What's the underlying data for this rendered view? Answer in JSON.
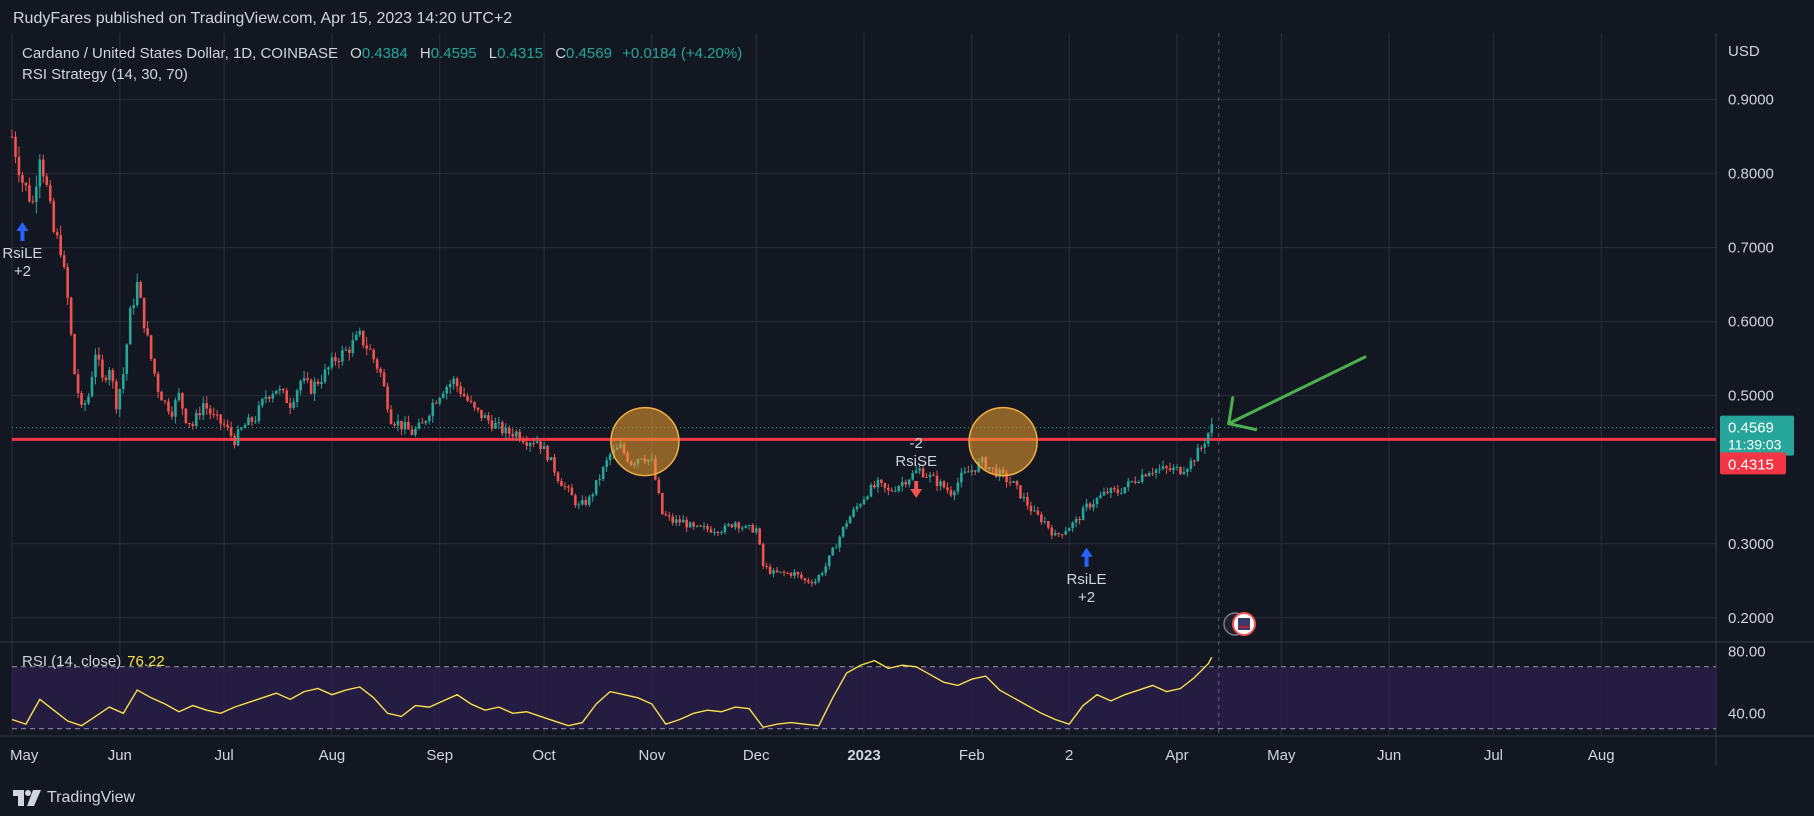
{
  "header": {
    "published": "RudyFares published on TradingView.com, Apr 15, 2023 14:20 UTC+2"
  },
  "legend": {
    "symbol": "Cardano / United States Dollar, 1D, COINBASE",
    "o_label": "O",
    "o_value": "0.4384",
    "h_label": "H",
    "h_value": "0.4595",
    "l_label": "L",
    "l_value": "0.4315",
    "c_label": "C",
    "c_value": "0.4569",
    "change": "+0.0184 (+4.20%)",
    "strategy": "RSI Strategy (14, 30, 70)"
  },
  "rsi_legend": {
    "label": "RSI (14, close)",
    "value": "76.22"
  },
  "footer": {
    "brand": "TradingView"
  },
  "colors": {
    "up": "#26a69a",
    "down": "#ef5350",
    "support": "#f23645",
    "rsi_line": "#f7e04b",
    "rsi_band": "#2a1e4a",
    "arrow": "#4caf50",
    "circle": "#f0a030",
    "signal_up": "#2962ff"
  },
  "chart_data": {
    "type": "candlestick",
    "title": "Cardano / United States Dollar, 1D, COINBASE",
    "currency_label": "USD",
    "y_ticks": [
      "0.9000",
      "0.8000",
      "0.7000",
      "0.6000",
      "0.5000",
      "0.3000",
      "0.2000"
    ],
    "y_tick_values": [
      0.9,
      0.8,
      0.7,
      0.6,
      0.5,
      0.3,
      0.2
    ],
    "ylim": [
      0.17,
      0.99
    ],
    "x_labels": [
      "May",
      "Jun",
      "Jul",
      "Aug",
      "Sep",
      "Oct",
      "Nov",
      "Dec",
      "2023",
      "Feb",
      "2",
      "Apr",
      "May",
      "Jun",
      "Jul",
      "Aug"
    ],
    "x_label_days": [
      0,
      31,
      61,
      92,
      123,
      153,
      184,
      214,
      245,
      276,
      304,
      335,
      365,
      396,
      426,
      457
    ],
    "x_range_days": [
      0,
      490
    ],
    "support_level": 0.441,
    "last_price_label": "0.4569",
    "countdown_label": "11:39:03",
    "low_price_label": "0.4315",
    "last_price": 0.4569,
    "low_price": 0.4315,
    "close_path": [
      [
        0,
        0.85
      ],
      [
        3,
        0.79
      ],
      [
        6,
        0.76
      ],
      [
        8,
        0.83
      ],
      [
        10,
        0.78
      ],
      [
        12,
        0.72
      ],
      [
        14,
        0.7
      ],
      [
        16,
        0.63
      ],
      [
        18,
        0.53
      ],
      [
        20,
        0.48
      ],
      [
        22,
        0.5
      ],
      [
        24,
        0.56
      ],
      [
        26,
        0.52
      ],
      [
        28,
        0.54
      ],
      [
        30,
        0.49
      ],
      [
        32,
        0.53
      ],
      [
        34,
        0.61
      ],
      [
        36,
        0.65
      ],
      [
        38,
        0.6
      ],
      [
        40,
        0.55
      ],
      [
        42,
        0.51
      ],
      [
        44,
        0.49
      ],
      [
        46,
        0.48
      ],
      [
        48,
        0.5
      ],
      [
        50,
        0.47
      ],
      [
        52,
        0.46
      ],
      [
        55,
        0.49
      ],
      [
        58,
        0.47
      ],
      [
        61,
        0.46
      ],
      [
        64,
        0.44
      ],
      [
        67,
        0.46
      ],
      [
        70,
        0.47
      ],
      [
        73,
        0.5
      ],
      [
        76,
        0.51
      ],
      [
        80,
        0.49
      ],
      [
        83,
        0.52
      ],
      [
        86,
        0.51
      ],
      [
        90,
        0.53
      ],
      [
        93,
        0.55
      ],
      [
        96,
        0.56
      ],
      [
        100,
        0.58
      ],
      [
        103,
        0.56
      ],
      [
        106,
        0.53
      ],
      [
        109,
        0.47
      ],
      [
        112,
        0.46
      ],
      [
        115,
        0.45
      ],
      [
        118,
        0.46
      ],
      [
        121,
        0.49
      ],
      [
        124,
        0.51
      ],
      [
        127,
        0.52
      ],
      [
        130,
        0.5
      ],
      [
        133,
        0.48
      ],
      [
        136,
        0.47
      ],
      [
        139,
        0.46
      ],
      [
        142,
        0.45
      ],
      [
        145,
        0.45
      ],
      [
        148,
        0.44
      ],
      [
        151,
        0.44
      ],
      [
        154,
        0.42
      ],
      [
        157,
        0.39
      ],
      [
        160,
        0.37
      ],
      [
        163,
        0.35
      ],
      [
        166,
        0.36
      ],
      [
        169,
        0.39
      ],
      [
        172,
        0.42
      ],
      [
        175,
        0.43
      ],
      [
        178,
        0.41
      ],
      [
        181,
        0.42
      ],
      [
        184,
        0.41
      ],
      [
        187,
        0.34
      ],
      [
        190,
        0.33
      ],
      [
        193,
        0.33
      ],
      [
        196,
        0.32
      ],
      [
        199,
        0.32
      ],
      [
        202,
        0.32
      ],
      [
        205,
        0.32
      ],
      [
        208,
        0.33
      ],
      [
        211,
        0.32
      ],
      [
        214,
        0.32
      ],
      [
        216,
        0.27
      ],
      [
        219,
        0.26
      ],
      [
        222,
        0.26
      ],
      [
        225,
        0.26
      ],
      [
        228,
        0.25
      ],
      [
        231,
        0.25
      ],
      [
        234,
        0.27
      ],
      [
        237,
        0.3
      ],
      [
        240,
        0.33
      ],
      [
        243,
        0.35
      ],
      [
        246,
        0.37
      ],
      [
        249,
        0.38
      ],
      [
        252,
        0.37
      ],
      [
        255,
        0.38
      ],
      [
        258,
        0.39
      ],
      [
        261,
        0.4
      ],
      [
        264,
        0.39
      ],
      [
        267,
        0.38
      ],
      [
        270,
        0.37
      ],
      [
        273,
        0.39
      ],
      [
        276,
        0.4
      ],
      [
        279,
        0.41
      ],
      [
        282,
        0.4
      ],
      [
        285,
        0.39
      ],
      [
        288,
        0.38
      ],
      [
        291,
        0.36
      ],
      [
        294,
        0.34
      ],
      [
        297,
        0.33
      ],
      [
        300,
        0.31
      ],
      [
        303,
        0.32
      ],
      [
        306,
        0.33
      ],
      [
        309,
        0.35
      ],
      [
        312,
        0.36
      ],
      [
        315,
        0.37
      ],
      [
        318,
        0.37
      ],
      [
        321,
        0.38
      ],
      [
        324,
        0.39
      ],
      [
        327,
        0.4
      ],
      [
        330,
        0.4
      ],
      [
        333,
        0.4
      ],
      [
        336,
        0.4
      ],
      [
        339,
        0.41
      ],
      [
        342,
        0.43
      ],
      [
        344,
        0.45
      ],
      [
        345,
        0.4569
      ]
    ],
    "annotations": [
      {
        "label": "RsiLE",
        "sublabel": "+2",
        "day": 3,
        "price": 0.74,
        "kind": "long"
      },
      {
        "label": "RsiSE",
        "sublabel": "-2",
        "day": 260,
        "price": 0.37,
        "kind": "short"
      },
      {
        "label": "RsiLE",
        "sublabel": "+2",
        "day": 309,
        "price": 0.3,
        "kind": "long"
      }
    ],
    "highlight_circles": [
      {
        "day": 182,
        "price": 0.438
      },
      {
        "day": 285,
        "price": 0.438
      }
    ],
    "rsi": {
      "label": "RSI (14, close)",
      "value": 76.22,
      "ylim": [
        26,
        86
      ],
      "y_ticks": [
        "80.00",
        "40.00"
      ],
      "y_tick_values": [
        80,
        40
      ],
      "band": [
        30,
        70
      ],
      "path": [
        [
          0,
          36
        ],
        [
          4,
          33
        ],
        [
          8,
          49
        ],
        [
          12,
          42
        ],
        [
          16,
          35
        ],
        [
          20,
          32
        ],
        [
          24,
          38
        ],
        [
          28,
          44
        ],
        [
          32,
          40
        ],
        [
          36,
          55
        ],
        [
          40,
          50
        ],
        [
          44,
          46
        ],
        [
          48,
          41
        ],
        [
          52,
          45
        ],
        [
          56,
          42
        ],
        [
          60,
          40
        ],
        [
          64,
          44
        ],
        [
          68,
          47
        ],
        [
          72,
          50
        ],
        [
          76,
          53
        ],
        [
          80,
          49
        ],
        [
          84,
          54
        ],
        [
          88,
          56
        ],
        [
          92,
          52
        ],
        [
          96,
          55
        ],
        [
          100,
          57
        ],
        [
          104,
          50
        ],
        [
          108,
          40
        ],
        [
          112,
          38
        ],
        [
          116,
          45
        ],
        [
          120,
          44
        ],
        [
          124,
          48
        ],
        [
          128,
          52
        ],
        [
          132,
          46
        ],
        [
          136,
          42
        ],
        [
          140,
          44
        ],
        [
          144,
          40
        ],
        [
          148,
          41
        ],
        [
          152,
          38
        ],
        [
          156,
          35
        ],
        [
          160,
          32
        ],
        [
          164,
          34
        ],
        [
          168,
          46
        ],
        [
          172,
          54
        ],
        [
          176,
          52
        ],
        [
          180,
          50
        ],
        [
          184,
          46
        ],
        [
          188,
          33
        ],
        [
          192,
          36
        ],
        [
          196,
          40
        ],
        [
          200,
          42
        ],
        [
          204,
          41
        ],
        [
          208,
          44
        ],
        [
          212,
          43
        ],
        [
          216,
          31
        ],
        [
          220,
          33
        ],
        [
          224,
          34
        ],
        [
          228,
          33
        ],
        [
          232,
          32
        ],
        [
          236,
          50
        ],
        [
          240,
          66
        ],
        [
          244,
          71
        ],
        [
          248,
          74
        ],
        [
          252,
          69
        ],
        [
          256,
          71
        ],
        [
          260,
          70
        ],
        [
          264,
          65
        ],
        [
          268,
          60
        ],
        [
          272,
          58
        ],
        [
          276,
          62
        ],
        [
          280,
          64
        ],
        [
          284,
          55
        ],
        [
          288,
          50
        ],
        [
          292,
          45
        ],
        [
          296,
          40
        ],
        [
          300,
          36
        ],
        [
          304,
          33
        ],
        [
          308,
          45
        ],
        [
          312,
          52
        ],
        [
          316,
          48
        ],
        [
          320,
          52
        ],
        [
          324,
          55
        ],
        [
          328,
          58
        ],
        [
          332,
          54
        ],
        [
          336,
          56
        ],
        [
          340,
          63
        ],
        [
          344,
          72
        ],
        [
          345,
          76.22
        ]
      ]
    }
  }
}
